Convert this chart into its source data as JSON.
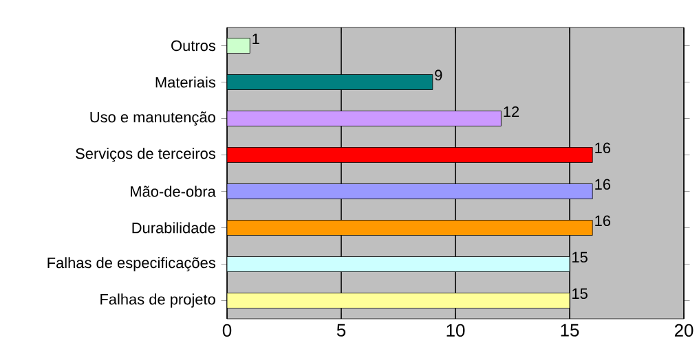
{
  "chart_data": {
    "type": "bar",
    "orientation": "horizontal",
    "categories": [
      "Outros",
      "Materiais",
      "Uso e manutenção",
      "Serviços de terceiros",
      "Mão-de-obra",
      "Durabilidade",
      "Falhas de especificações",
      "Falhas de projeto"
    ],
    "values": [
      1,
      9,
      12,
      16,
      16,
      16,
      15,
      15
    ],
    "data_labels": true,
    "colors": [
      "#ccffcc",
      "#008080",
      "#cc99ff",
      "#ff0000",
      "#9999ff",
      "#ff9900",
      "#ccffff",
      "#ffff99"
    ],
    "xlim": [
      0,
      20
    ],
    "xticks": [
      0,
      5,
      10,
      15,
      20
    ],
    "grid": "x"
  }
}
